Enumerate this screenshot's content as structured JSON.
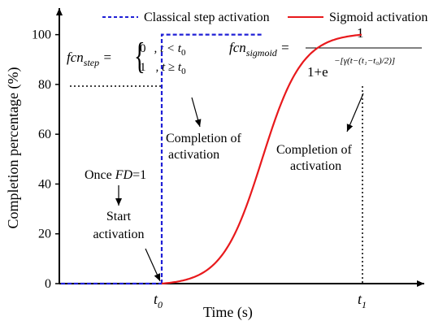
{
  "chart_data": {
    "type": "line",
    "xlabel": "Time (s)",
    "ylabel": "Completion percentage (%)",
    "ylim": [
      0,
      110
    ],
    "yticks": [
      "0",
      "20",
      "40",
      "60",
      "80",
      "100"
    ],
    "xticks": [
      {
        "main": "t",
        "sub": "0"
      },
      {
        "main": "t",
        "sub": "1"
      }
    ],
    "legend_placement": "top",
    "series": [
      {
        "name": "Classical step activation",
        "color": "#1f1fd6",
        "style": "dashed",
        "x": [
          "t0",
          "t0",
          "t1"
        ],
        "y": [
          0,
          100,
          100
        ]
      },
      {
        "name": "Sigmoid activation",
        "color": "#e8191c",
        "style": "solid",
        "x": [
          "t0",
          "(t0+t1)/2",
          "t1"
        ],
        "y": [
          0,
          50,
          100
        ]
      }
    ],
    "annotations": {
      "once_fd_pre": "Once ",
      "once_fd_var": "FD",
      "once_fd_post": "=1",
      "start_activation": [
        "Start",
        "activation"
      ],
      "completion_step": [
        "Completion of",
        "activation"
      ],
      "completion_sigmoid": [
        "Completion of",
        "activation"
      ]
    },
    "formulas": {
      "step": {
        "lhs": "fcn",
        "lhs_sub": "step",
        "case1_value": "0",
        "case1_cond": ", t < t",
        "case1_sub": "0",
        "case2_value": "1",
        "case2_cond": ", t ≥ t",
        "case2_sub": "0"
      },
      "sigmoid": {
        "lhs": "fcn",
        "lhs_sub": "sigmoid",
        "numerator": "1",
        "denominator": "1+e",
        "exponent": "−[γ(t−(t₁−t₀)/2)]"
      }
    }
  }
}
